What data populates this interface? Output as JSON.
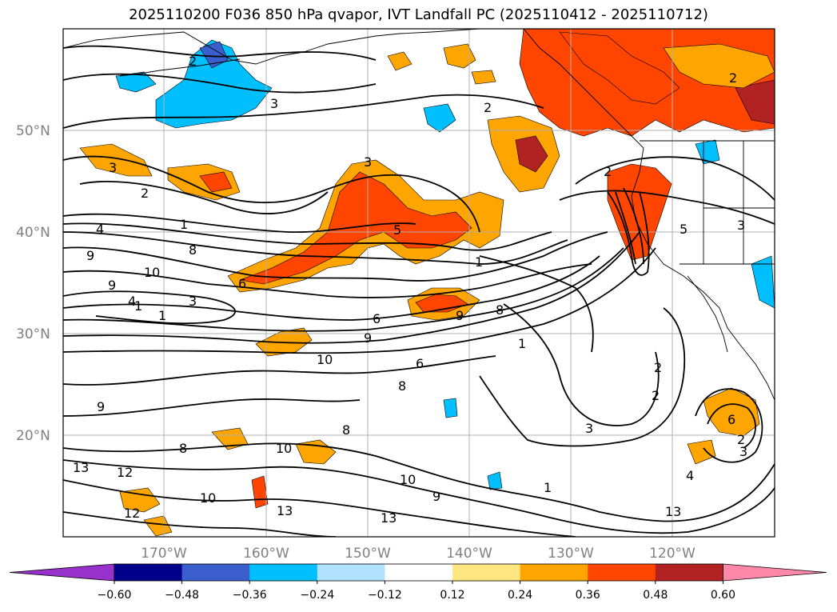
{
  "title": "2025110200 F036 850 hPa qvapor, IVT Landfall PC (2025110412 - 2025110712)",
  "map": {
    "lat_labels": [
      "50°N",
      "40°N",
      "30°N",
      "20°N"
    ],
    "lon_labels": [
      "170°W",
      "160°W",
      "150°W",
      "140°W",
      "130°W",
      "120°W"
    ],
    "contour_labels": [
      "2",
      "3",
      "2",
      "3",
      "2",
      "1",
      "8",
      "9",
      "4",
      "10",
      "9",
      "1",
      "3",
      "1",
      "3",
      "4",
      "6",
      "1",
      "5",
      "2",
      "6",
      "9",
      "8",
      "9",
      "10",
      "2",
      "6",
      "8",
      "9",
      "8",
      "1",
      "10",
      "8",
      "12",
      "13",
      "10",
      "9",
      "13",
      "13",
      "12",
      "10",
      "3",
      "1",
      "2",
      "3",
      "2",
      "2",
      "13",
      "4",
      "6",
      "5",
      "3"
    ]
  },
  "colorbar": {
    "ticks": [
      "−0.60",
      "−0.48",
      "−0.36",
      "−0.24",
      "−0.12",
      "0.12",
      "0.24",
      "0.36",
      "0.48",
      "0.60"
    ],
    "colors": [
      "#9932cc",
      "#00008b",
      "#3a5fcd",
      "#00bfff",
      "#b0e2ff",
      "#ffffff",
      "#ffe680",
      "#ffa500",
      "#ff4500",
      "#b22222",
      "#ff88aa"
    ]
  }
}
